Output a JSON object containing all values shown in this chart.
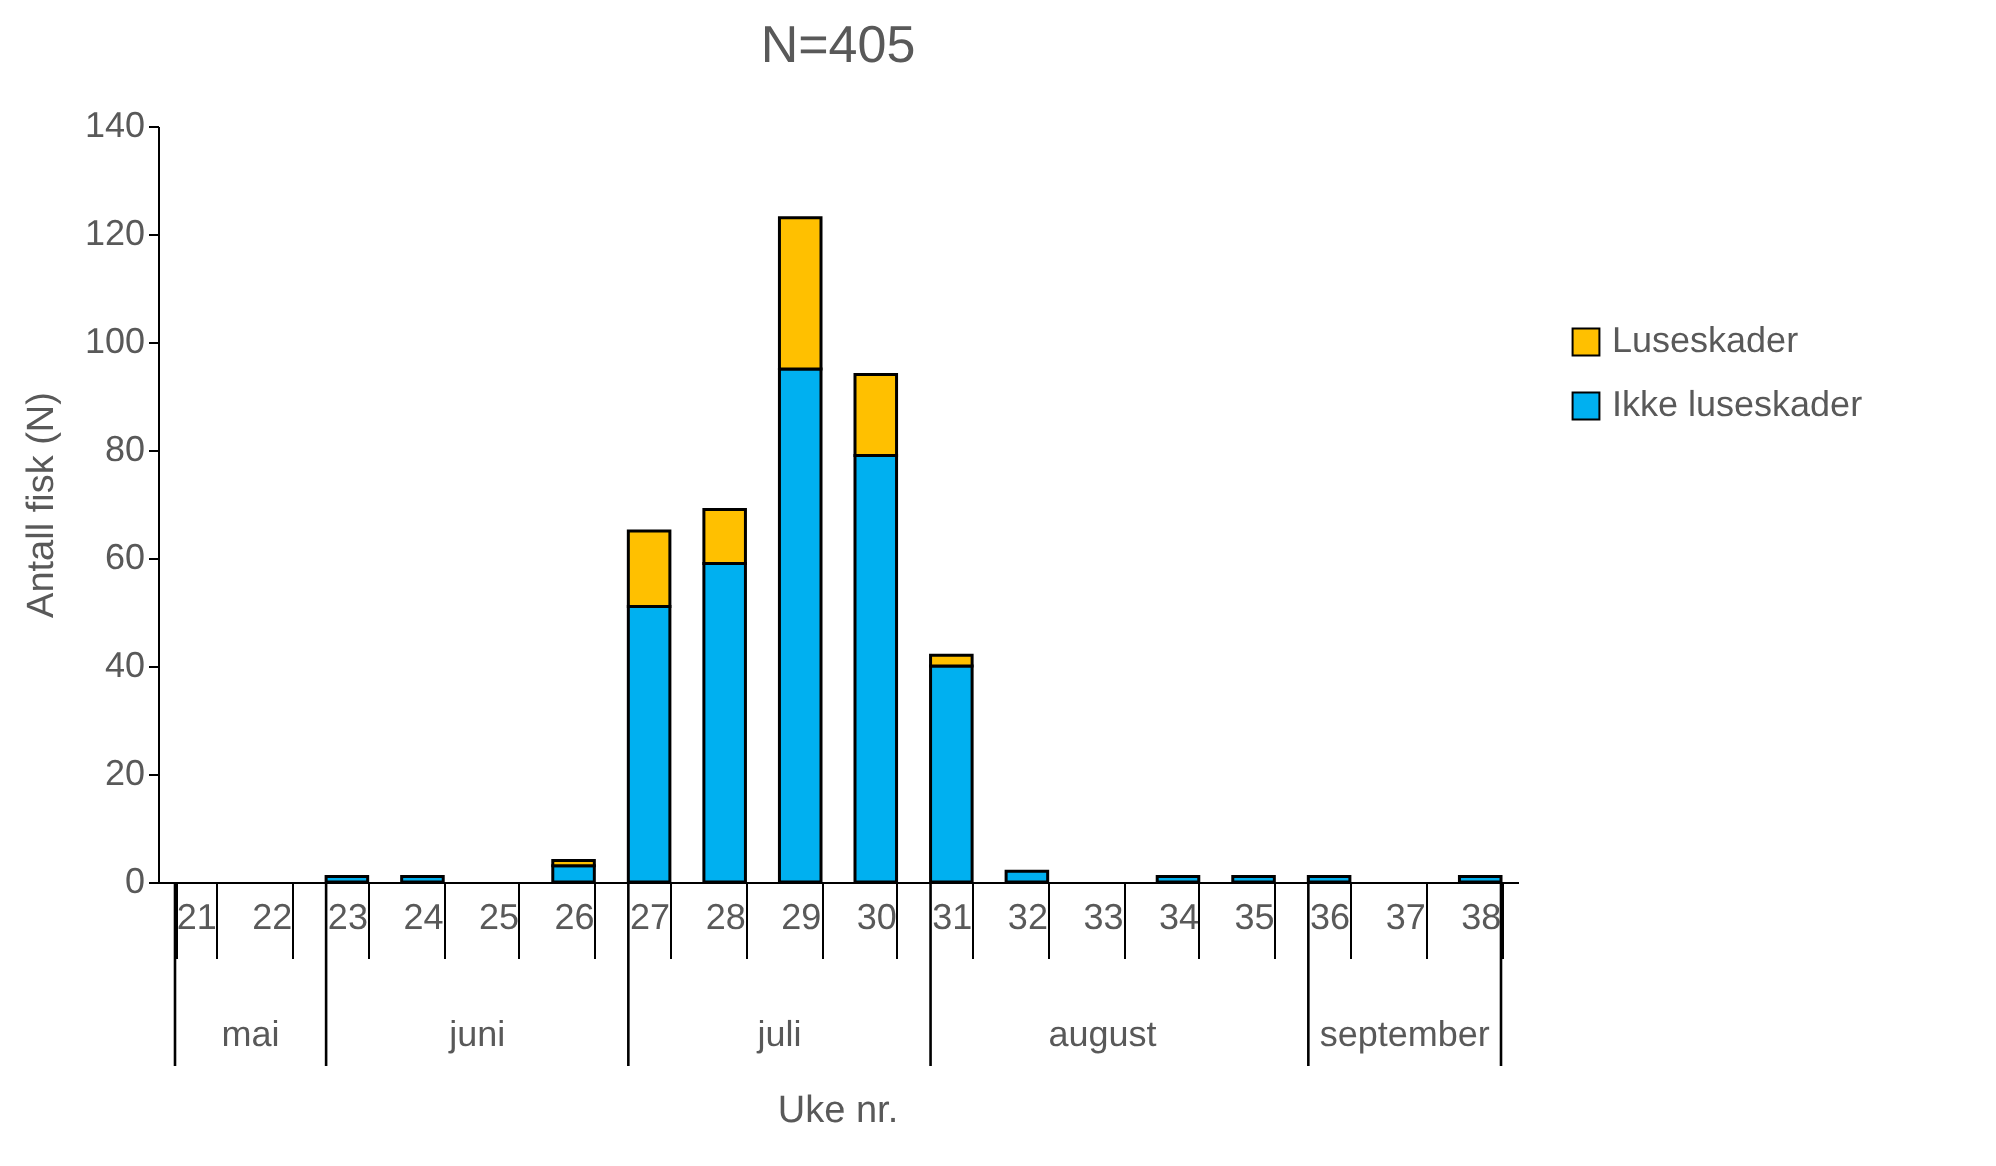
{
  "chart_data": {
    "type": "bar",
    "title": "N=405",
    "xlabel": "Uke nr.",
    "ylabel": "Antall fisk (N)",
    "categories": [
      "21",
      "22",
      "23",
      "24",
      "25",
      "26",
      "27",
      "28",
      "29",
      "30",
      "31",
      "32",
      "33",
      "34",
      "35",
      "36",
      "37",
      "38"
    ],
    "series": [
      {
        "name": "Ikke luseskader",
        "color": "#00b0f0",
        "values": [
          0,
          0,
          1,
          1,
          0,
          3,
          51,
          59,
          95,
          79,
          40,
          2,
          0,
          1,
          1,
          1,
          0,
          1
        ]
      },
      {
        "name": "Luseskader",
        "color": "#ffc000",
        "values": [
          0,
          0,
          0,
          0,
          0,
          1,
          14,
          10,
          28,
          15,
          2,
          0,
          0,
          0,
          0,
          0,
          0,
          0
        ]
      }
    ],
    "stacked": true,
    "ylim": [
      0,
      140
    ],
    "yticks": [
      0,
      20,
      40,
      60,
      80,
      100,
      120,
      140
    ],
    "grid": false,
    "legend": "right",
    "annotations": [
      "mai",
      "juni",
      "juli",
      "august",
      "september"
    ]
  }
}
